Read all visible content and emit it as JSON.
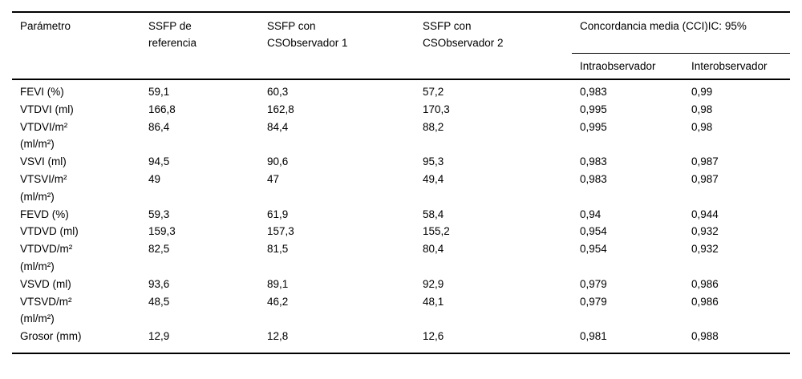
{
  "table": {
    "header": {
      "parametro": "Parámetro",
      "ssfp_ref": "SSFP de\nreferencia",
      "ssfp_obs1": "SSFP con\nCSObservador 1",
      "ssfp_obs2": "SSFP con\nCSObservador 2",
      "concordancia": "Concordancia media (CCI)IC: 95%",
      "intra": "Intraobservador",
      "inter": "Interobservador"
    },
    "rows": [
      {
        "cells": [
          "FEVI (%)",
          "59,1",
          "60,3",
          "57,2",
          "0,983",
          "0,99"
        ]
      },
      {
        "cells": [
          "VTDVI (ml)",
          "166,8",
          "162,8",
          "170,3",
          "0,995",
          "0,98"
        ]
      },
      {
        "cells": [
          "VTDVI/m²\n(ml/m²)",
          "86,4",
          "84,4",
          "88,2",
          "0,995",
          "0,98"
        ]
      },
      {
        "cells": [
          "VSVI (ml)",
          "94,5",
          "90,6",
          "95,3",
          "0,983",
          "0,987"
        ]
      },
      {
        "cells": [
          "VTSVI/m²\n(ml/m²)",
          "49",
          "47",
          "49,4",
          "0,983",
          "0,987"
        ]
      },
      {
        "cells": [
          "FEVD (%)",
          "59,3",
          "61,9",
          "58,4",
          "0,94",
          "0,944"
        ]
      },
      {
        "cells": [
          "VTDVD (ml)",
          "159,3",
          "157,3",
          "155,2",
          "0,954",
          "0,932"
        ]
      },
      {
        "cells": [
          "VTDVD/m²\n(ml/m²)",
          "82,5",
          "81,5",
          "80,4",
          "0,954",
          "0,932"
        ]
      },
      {
        "cells": [
          "VSVD (ml)",
          "93,6",
          "89,1",
          "92,9",
          "0,979",
          "0,986"
        ]
      },
      {
        "cells": [
          "VTSVD/m²\n(ml/m²)",
          "48,5",
          "46,2",
          "48,1",
          "0,979",
          "0,986"
        ]
      },
      {
        "cells": [
          "Grosor (mm)",
          "12,9",
          "12,8",
          "12,6",
          "0,981",
          "0,988"
        ]
      }
    ],
    "colors": {
      "rule": "#000000",
      "background": "#ffffff",
      "text": "#000000"
    }
  }
}
